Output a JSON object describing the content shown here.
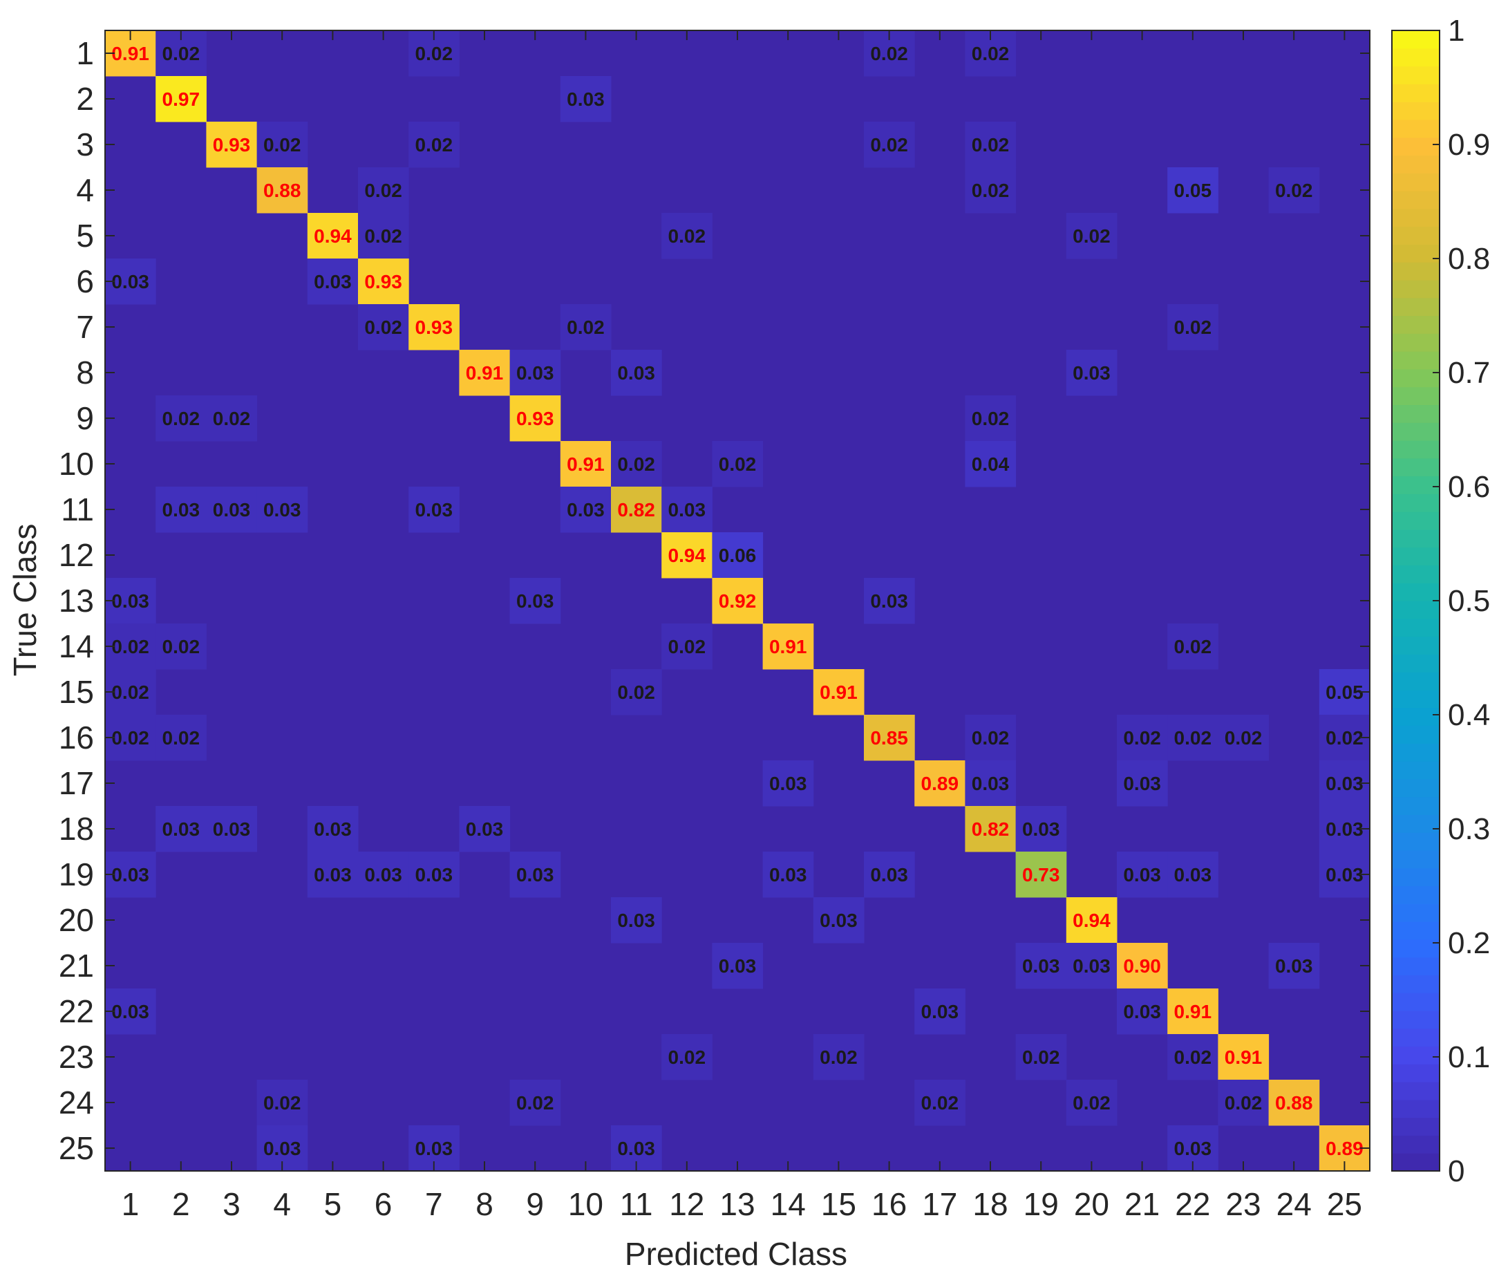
{
  "chart_data": {
    "type": "heatmap",
    "xlabel": "Predicted Class",
    "ylabel": "True Class",
    "x_categories": [
      "1",
      "2",
      "3",
      "4",
      "5",
      "6",
      "7",
      "8",
      "9",
      "10",
      "11",
      "12",
      "13",
      "14",
      "15",
      "16",
      "17",
      "18",
      "19",
      "20",
      "21",
      "22",
      "23",
      "24",
      "25"
    ],
    "y_categories": [
      "1",
      "2",
      "3",
      "4",
      "5",
      "6",
      "7",
      "8",
      "9",
      "10",
      "11",
      "12",
      "13",
      "14",
      "15",
      "16",
      "17",
      "18",
      "19",
      "20",
      "21",
      "22",
      "23",
      "24",
      "25"
    ],
    "colorbar": {
      "min": 0,
      "max": 1,
      "ticks": [
        "0",
        "0.1",
        "0.2",
        "0.3",
        "0.4",
        "0.5",
        "0.6",
        "0.7",
        "0.8",
        "0.9",
        "1"
      ],
      "colormap": "parula"
    },
    "diagonal_label_color": "#ff0000",
    "offdiagonal_label_color": "#1a1a1a",
    "cells": [
      {
        "row": 1,
        "col": 1,
        "value": 0.91
      },
      {
        "row": 1,
        "col": 2,
        "value": 0.02
      },
      {
        "row": 1,
        "col": 7,
        "value": 0.02
      },
      {
        "row": 1,
        "col": 16,
        "value": 0.02
      },
      {
        "row": 1,
        "col": 18,
        "value": 0.02
      },
      {
        "row": 2,
        "col": 2,
        "value": 0.97
      },
      {
        "row": 2,
        "col": 10,
        "value": 0.03
      },
      {
        "row": 3,
        "col": 3,
        "value": 0.93
      },
      {
        "row": 3,
        "col": 4,
        "value": 0.02
      },
      {
        "row": 3,
        "col": 7,
        "value": 0.02
      },
      {
        "row": 3,
        "col": 16,
        "value": 0.02
      },
      {
        "row": 3,
        "col": 18,
        "value": 0.02
      },
      {
        "row": 4,
        "col": 4,
        "value": 0.88
      },
      {
        "row": 4,
        "col": 6,
        "value": 0.02
      },
      {
        "row": 4,
        "col": 18,
        "value": 0.02
      },
      {
        "row": 4,
        "col": 22,
        "value": 0.05
      },
      {
        "row": 4,
        "col": 24,
        "value": 0.02
      },
      {
        "row": 5,
        "col": 5,
        "value": 0.94
      },
      {
        "row": 5,
        "col": 6,
        "value": 0.02
      },
      {
        "row": 5,
        "col": 12,
        "value": 0.02
      },
      {
        "row": 5,
        "col": 20,
        "value": 0.02
      },
      {
        "row": 6,
        "col": 1,
        "value": 0.03
      },
      {
        "row": 6,
        "col": 5,
        "value": 0.03
      },
      {
        "row": 6,
        "col": 6,
        "value": 0.93
      },
      {
        "row": 7,
        "col": 6,
        "value": 0.02
      },
      {
        "row": 7,
        "col": 7,
        "value": 0.93
      },
      {
        "row": 7,
        "col": 10,
        "value": 0.02
      },
      {
        "row": 7,
        "col": 22,
        "value": 0.02
      },
      {
        "row": 8,
        "col": 8,
        "value": 0.91
      },
      {
        "row": 8,
        "col": 9,
        "value": 0.03
      },
      {
        "row": 8,
        "col": 11,
        "value": 0.03
      },
      {
        "row": 8,
        "col": 20,
        "value": 0.03
      },
      {
        "row": 9,
        "col": 2,
        "value": 0.02
      },
      {
        "row": 9,
        "col": 3,
        "value": 0.02
      },
      {
        "row": 9,
        "col": 9,
        "value": 0.93
      },
      {
        "row": 9,
        "col": 18,
        "value": 0.02
      },
      {
        "row": 10,
        "col": 10,
        "value": 0.91
      },
      {
        "row": 10,
        "col": 11,
        "value": 0.02
      },
      {
        "row": 10,
        "col": 13,
        "value": 0.02
      },
      {
        "row": 10,
        "col": 18,
        "value": 0.04
      },
      {
        "row": 11,
        "col": 2,
        "value": 0.03
      },
      {
        "row": 11,
        "col": 3,
        "value": 0.03
      },
      {
        "row": 11,
        "col": 4,
        "value": 0.03
      },
      {
        "row": 11,
        "col": 7,
        "value": 0.03
      },
      {
        "row": 11,
        "col": 10,
        "value": 0.03
      },
      {
        "row": 11,
        "col": 11,
        "value": 0.82
      },
      {
        "row": 11,
        "col": 12,
        "value": 0.03
      },
      {
        "row": 12,
        "col": 12,
        "value": 0.94
      },
      {
        "row": 12,
        "col": 13,
        "value": 0.06
      },
      {
        "row": 13,
        "col": 1,
        "value": 0.03
      },
      {
        "row": 13,
        "col": 9,
        "value": 0.03
      },
      {
        "row": 13,
        "col": 13,
        "value": 0.92
      },
      {
        "row": 13,
        "col": 16,
        "value": 0.03
      },
      {
        "row": 14,
        "col": 1,
        "value": 0.02
      },
      {
        "row": 14,
        "col": 2,
        "value": 0.02
      },
      {
        "row": 14,
        "col": 12,
        "value": 0.02
      },
      {
        "row": 14,
        "col": 14,
        "value": 0.91
      },
      {
        "row": 14,
        "col": 22,
        "value": 0.02
      },
      {
        "row": 15,
        "col": 1,
        "value": 0.02
      },
      {
        "row": 15,
        "col": 11,
        "value": 0.02
      },
      {
        "row": 15,
        "col": 15,
        "value": 0.91
      },
      {
        "row": 15,
        "col": 25,
        "value": 0.05
      },
      {
        "row": 16,
        "col": 1,
        "value": 0.02
      },
      {
        "row": 16,
        "col": 2,
        "value": 0.02
      },
      {
        "row": 16,
        "col": 16,
        "value": 0.85
      },
      {
        "row": 16,
        "col": 18,
        "value": 0.02
      },
      {
        "row": 16,
        "col": 21,
        "value": 0.02
      },
      {
        "row": 16,
        "col": 22,
        "value": 0.02
      },
      {
        "row": 16,
        "col": 23,
        "value": 0.02
      },
      {
        "row": 16,
        "col": 25,
        "value": 0.02
      },
      {
        "row": 17,
        "col": 14,
        "value": 0.03
      },
      {
        "row": 17,
        "col": 17,
        "value": 0.89
      },
      {
        "row": 17,
        "col": 18,
        "value": 0.03
      },
      {
        "row": 17,
        "col": 21,
        "value": 0.03
      },
      {
        "row": 17,
        "col": 25,
        "value": 0.03
      },
      {
        "row": 18,
        "col": 2,
        "value": 0.03
      },
      {
        "row": 18,
        "col": 3,
        "value": 0.03
      },
      {
        "row": 18,
        "col": 5,
        "value": 0.03
      },
      {
        "row": 18,
        "col": 8,
        "value": 0.03
      },
      {
        "row": 18,
        "col": 18,
        "value": 0.82
      },
      {
        "row": 18,
        "col": 19,
        "value": 0.03
      },
      {
        "row": 18,
        "col": 25,
        "value": 0.03
      },
      {
        "row": 19,
        "col": 1,
        "value": 0.03
      },
      {
        "row": 19,
        "col": 5,
        "value": 0.03
      },
      {
        "row": 19,
        "col": 6,
        "value": 0.03
      },
      {
        "row": 19,
        "col": 7,
        "value": 0.03
      },
      {
        "row": 19,
        "col": 9,
        "value": 0.03
      },
      {
        "row": 19,
        "col": 14,
        "value": 0.03
      },
      {
        "row": 19,
        "col": 16,
        "value": 0.03
      },
      {
        "row": 19,
        "col": 19,
        "value": 0.73
      },
      {
        "row": 19,
        "col": 21,
        "value": 0.03
      },
      {
        "row": 19,
        "col": 22,
        "value": 0.03
      },
      {
        "row": 19,
        "col": 25,
        "value": 0.03
      },
      {
        "row": 20,
        "col": 11,
        "value": 0.03
      },
      {
        "row": 20,
        "col": 15,
        "value": 0.03
      },
      {
        "row": 20,
        "col": 20,
        "value": 0.94
      },
      {
        "row": 21,
        "col": 13,
        "value": 0.03
      },
      {
        "row": 21,
        "col": 19,
        "value": 0.03
      },
      {
        "row": 21,
        "col": 20,
        "value": 0.03
      },
      {
        "row": 21,
        "col": 21,
        "value": 0.9
      },
      {
        "row": 21,
        "col": 24,
        "value": 0.03
      },
      {
        "row": 22,
        "col": 1,
        "value": 0.03
      },
      {
        "row": 22,
        "col": 17,
        "value": 0.03
      },
      {
        "row": 22,
        "col": 21,
        "value": 0.03
      },
      {
        "row": 22,
        "col": 22,
        "value": 0.91
      },
      {
        "row": 23,
        "col": 12,
        "value": 0.02
      },
      {
        "row": 23,
        "col": 15,
        "value": 0.02
      },
      {
        "row": 23,
        "col": 19,
        "value": 0.02
      },
      {
        "row": 23,
        "col": 22,
        "value": 0.02
      },
      {
        "row": 23,
        "col": 23,
        "value": 0.91
      },
      {
        "row": 24,
        "col": 4,
        "value": 0.02
      },
      {
        "row": 24,
        "col": 9,
        "value": 0.02
      },
      {
        "row": 24,
        "col": 17,
        "value": 0.02
      },
      {
        "row": 24,
        "col": 20,
        "value": 0.02
      },
      {
        "row": 24,
        "col": 23,
        "value": 0.02
      },
      {
        "row": 24,
        "col": 24,
        "value": 0.88
      },
      {
        "row": 25,
        "col": 4,
        "value": 0.03
      },
      {
        "row": 25,
        "col": 7,
        "value": 0.03
      },
      {
        "row": 25,
        "col": 11,
        "value": 0.03
      },
      {
        "row": 25,
        "col": 22,
        "value": 0.03
      },
      {
        "row": 25,
        "col": 25,
        "value": 0.89
      }
    ]
  }
}
